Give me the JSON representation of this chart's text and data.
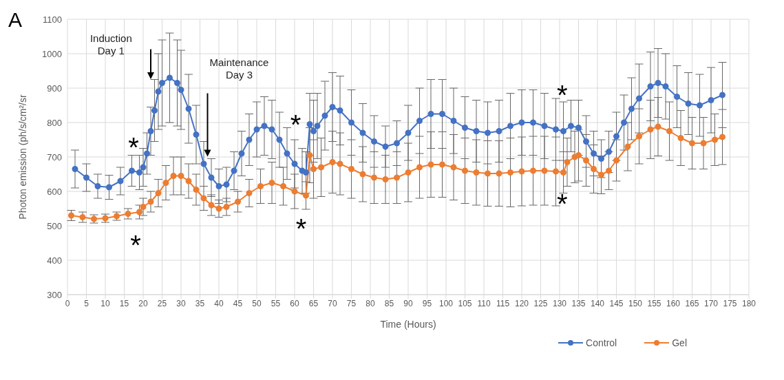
{
  "chart_data": {
    "type": "line",
    "xlabel": "Time (Hours)",
    "ylabel": "Photon emission (ph/s/cm²/sr",
    "xlim": [
      0,
      180
    ],
    "xticks": [
      0,
      5,
      10,
      15,
      20,
      25,
      30,
      35,
      40,
      45,
      50,
      55,
      60,
      65,
      70,
      75,
      80,
      85,
      90,
      95,
      100,
      105,
      110,
      115,
      120,
      125,
      130,
      135,
      140,
      145,
      150,
      155,
      160,
      165,
      170,
      175,
      180
    ],
    "ylim": [
      300,
      1100
    ],
    "yticks": [
      300,
      400,
      500,
      600,
      700,
      800,
      900,
      1000,
      1100
    ],
    "grid": true,
    "legend": "bottom right",
    "marker": "circle",
    "line_style": "solid",
    "series": [
      {
        "name": "Control",
        "color": "#4472c4",
        "x": [
          2,
          5,
          8,
          11,
          14,
          17,
          19,
          20,
          21,
          22,
          23,
          24,
          25,
          27,
          29,
          30,
          32,
          34,
          36,
          38,
          40,
          42,
          44,
          46,
          48,
          50,
          52,
          54,
          56,
          58,
          60,
          62,
          63,
          64,
          65,
          66,
          68,
          70,
          72,
          75,
          78,
          81,
          84,
          87,
          90,
          93,
          96,
          99,
          102,
          105,
          108,
          111,
          114,
          117,
          120,
          123,
          126,
          129,
          131,
          133,
          135,
          137,
          139,
          141,
          143,
          145,
          147,
          149,
          151,
          154,
          156,
          158,
          161,
          164,
          167,
          170,
          173
        ],
        "values": [
          665,
          640,
          615,
          612,
          630,
          660,
          655,
          670,
          710,
          775,
          835,
          890,
          915,
          930,
          915,
          895,
          840,
          765,
          680,
          640,
          615,
          620,
          660,
          710,
          750,
          780,
          790,
          780,
          750,
          710,
          680,
          660,
          655,
          795,
          775,
          790,
          820,
          845,
          835,
          800,
          770,
          745,
          730,
          740,
          770,
          805,
          825,
          825,
          805,
          785,
          775,
          770,
          775,
          790,
          800,
          800,
          790,
          780,
          775,
          790,
          785,
          745,
          710,
          695,
          715,
          760,
          800,
          840,
          870,
          905,
          915,
          905,
          875,
          855,
          850,
          865,
          880
        ],
        "errors": [
          55,
          40,
          35,
          35,
          40,
          45,
          50,
          55,
          60,
          70,
          90,
          110,
          125,
          130,
          125,
          115,
          100,
          85,
          65,
          55,
          50,
          50,
          55,
          65,
          75,
          80,
          85,
          85,
          80,
          75,
          70,
          65,
          60,
          90,
          90,
          95,
          100,
          100,
          100,
          95,
          85,
          75,
          60,
          65,
          80,
          95,
          100,
          100,
          95,
          90,
          90,
          90,
          90,
          95,
          95,
          95,
          95,
          90,
          85,
          75,
          80,
          75,
          65,
          55,
          60,
          70,
          80,
          90,
          100,
          100,
          100,
          95,
          90,
          90,
          90,
          95,
          95
        ]
      },
      {
        "name": "Gel",
        "color": "#ed7d31",
        "x": [
          1,
          4,
          7,
          10,
          13,
          16,
          19,
          20,
          22,
          24,
          26,
          28,
          30,
          32,
          34,
          36,
          38,
          40,
          42,
          45,
          48,
          51,
          54,
          57,
          60,
          63,
          64,
          65,
          67,
          70,
          72,
          75,
          78,
          81,
          84,
          87,
          90,
          93,
          96,
          99,
          102,
          105,
          108,
          111,
          114,
          117,
          120,
          123,
          126,
          129,
          131,
          132,
          134,
          135,
          137,
          139,
          141,
          143,
          145,
          148,
          151,
          154,
          156,
          159,
          162,
          165,
          168,
          171,
          173
        ],
        "values": [
          530,
          525,
          520,
          522,
          528,
          535,
          540,
          555,
          570,
          595,
          625,
          645,
          645,
          630,
          605,
          580,
          560,
          550,
          555,
          570,
          595,
          615,
          625,
          615,
          600,
          588,
          705,
          665,
          670,
          685,
          680,
          665,
          650,
          640,
          635,
          640,
          655,
          670,
          678,
          678,
          670,
          660,
          655,
          652,
          652,
          655,
          658,
          660,
          660,
          658,
          655,
          685,
          700,
          705,
          690,
          665,
          648,
          660,
          690,
          730,
          760,
          780,
          788,
          775,
          755,
          740,
          740,
          750,
          758
        ],
        "errors": [
          15,
          15,
          12,
          12,
          12,
          15,
          20,
          25,
          30,
          40,
          50,
          55,
          55,
          50,
          45,
          35,
          30,
          25,
          25,
          30,
          40,
          50,
          60,
          55,
          50,
          40,
          80,
          85,
          85,
          90,
          90,
          85,
          80,
          75,
          70,
          75,
          85,
          90,
          95,
          95,
          95,
          95,
          95,
          95,
          95,
          100,
          100,
          100,
          100,
          100,
          60,
          70,
          75,
          75,
          75,
          70,
          55,
          55,
          60,
          70,
          80,
          85,
          85,
          85,
          80,
          75,
          75,
          75,
          80
        ]
      }
    ],
    "annotations": [
      "A",
      "Induction\nDay 1",
      "Maintenance\nDay 3",
      "*",
      "*",
      "*",
      "*",
      "*",
      "*"
    ]
  }
}
